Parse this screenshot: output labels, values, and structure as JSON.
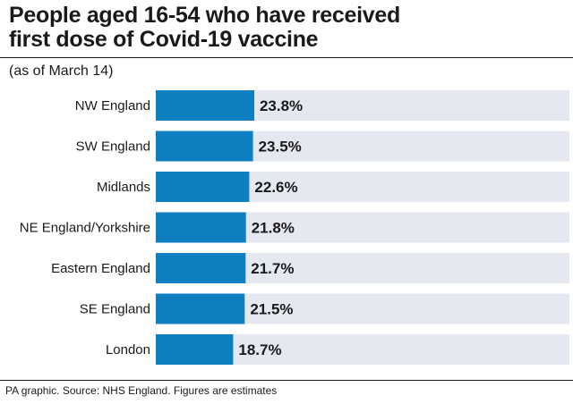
{
  "header": {
    "title_line1": "People aged 16-54 who have received",
    "title_line2": "first dose of Covid-19 vaccine",
    "subtitle": "(as of March 14)"
  },
  "footer": {
    "source": "PA graphic. Source: NHS England. Figures are estimates"
  },
  "colors": {
    "bar": "#0e7fc0",
    "track": "#e6e8f1",
    "text": "#1a1a1a"
  },
  "chart_data": {
    "type": "bar",
    "orientation": "horizontal",
    "title": "People aged 16-54 who have received first dose of Covid-19 vaccine",
    "subtitle": "(as of March 14)",
    "categories": [
      "NW England",
      "SW England",
      "Midlands",
      "NE England/Yorkshire",
      "Eastern England",
      "SE England",
      "London"
    ],
    "values": [
      23.8,
      23.5,
      22.6,
      21.8,
      21.7,
      21.5,
      18.7
    ],
    "value_labels": [
      "23.8%",
      "23.5%",
      "22.6%",
      "21.8%",
      "21.7%",
      "21.5%",
      "18.7%"
    ],
    "unit": "%",
    "xlim": [
      0,
      100
    ],
    "grid": false,
    "legend": "none"
  }
}
